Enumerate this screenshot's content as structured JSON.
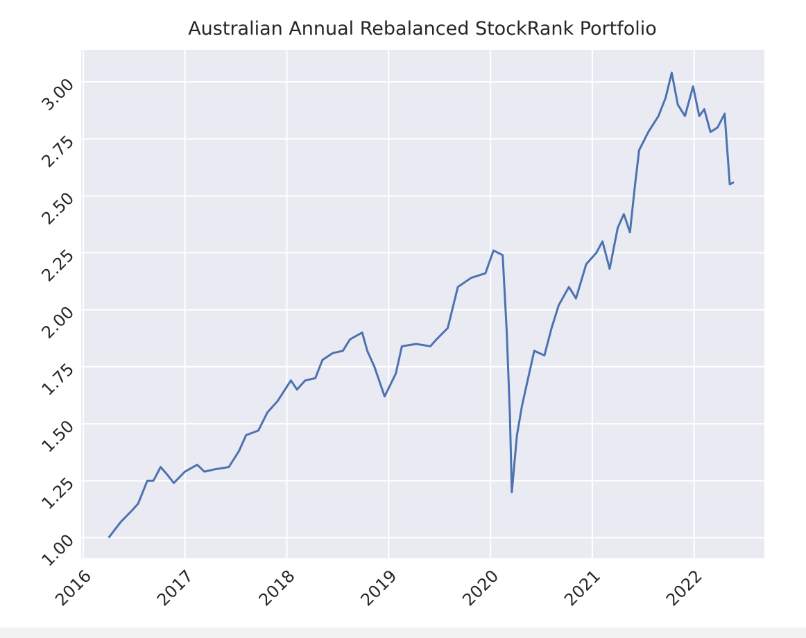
{
  "chart_data": {
    "type": "line",
    "title": "Australian Annual Rebalanced StockRank Portfolio",
    "x": [
      2016.25,
      2016.37,
      2016.48,
      2016.54,
      2016.63,
      2016.69,
      2016.76,
      2016.82,
      2016.89,
      2017.0,
      2017.12,
      2017.19,
      2017.29,
      2017.43,
      2017.53,
      2017.6,
      2017.72,
      2017.81,
      2017.91,
      2018.04,
      2018.1,
      2018.18,
      2018.28,
      2018.35,
      2018.45,
      2018.55,
      2018.62,
      2018.74,
      2018.79,
      2018.86,
      2018.96,
      2019.07,
      2019.13,
      2019.27,
      2019.41,
      2019.47,
      2019.58,
      2019.68,
      2019.81,
      2019.95,
      2020.03,
      2020.12,
      2020.16,
      2020.19,
      2020.21,
      2020.26,
      2020.31,
      2020.37,
      2020.43,
      2020.53,
      2020.6,
      2020.67,
      2020.77,
      2020.84,
      2020.94,
      2021.04,
      2021.1,
      2021.17,
      2021.25,
      2021.31,
      2021.37,
      2021.42,
      2021.46,
      2021.55,
      2021.65,
      2021.72,
      2021.78,
      2021.84,
      2021.91,
      2021.99,
      2022.05,
      2022.1,
      2022.16,
      2022.23,
      2022.3,
      2022.35,
      2022.39
    ],
    "series": [
      {
        "color": "#4c72b0",
        "values": [
          1.0,
          1.07,
          1.12,
          1.15,
          1.25,
          1.25,
          1.31,
          1.28,
          1.24,
          1.29,
          1.32,
          1.29,
          1.3,
          1.31,
          1.38,
          1.45,
          1.47,
          1.55,
          1.6,
          1.69,
          1.65,
          1.69,
          1.7,
          1.78,
          1.81,
          1.82,
          1.87,
          1.9,
          1.82,
          1.75,
          1.62,
          1.72,
          1.84,
          1.85,
          1.84,
          1.87,
          1.92,
          2.1,
          2.14,
          2.16,
          2.26,
          2.24,
          1.9,
          1.55,
          1.2,
          1.45,
          1.58,
          1.7,
          1.82,
          1.8,
          1.92,
          2.02,
          2.1,
          2.05,
          2.2,
          2.25,
          2.3,
          2.18,
          2.36,
          2.42,
          2.34,
          2.55,
          2.7,
          2.78,
          2.85,
          2.93,
          3.04,
          2.9,
          2.85,
          2.98,
          2.85,
          2.88,
          2.78,
          2.8,
          2.86,
          2.55,
          2.56
        ]
      }
    ],
    "xlim": [
      2015.98,
      2022.69
    ],
    "xticks": [
      2016,
      2017,
      2018,
      2019,
      2020,
      2021,
      2022
    ],
    "ylim": [
      0.91,
      3.14
    ],
    "yticks": [
      {
        "value": 1.0,
        "label": "1.00"
      },
      {
        "value": 1.25,
        "label": "1.25"
      },
      {
        "value": 1.5,
        "label": "1.50"
      },
      {
        "value": 1.75,
        "label": "1.75"
      },
      {
        "value": 2.0,
        "label": "2.00"
      },
      {
        "value": 2.25,
        "label": "2.25"
      },
      {
        "value": 2.5,
        "label": "2.50"
      },
      {
        "value": 2.75,
        "label": "2.75"
      },
      {
        "value": 3.0,
        "label": "3.00"
      }
    ],
    "grid": true,
    "background": "#eaeaf2"
  }
}
